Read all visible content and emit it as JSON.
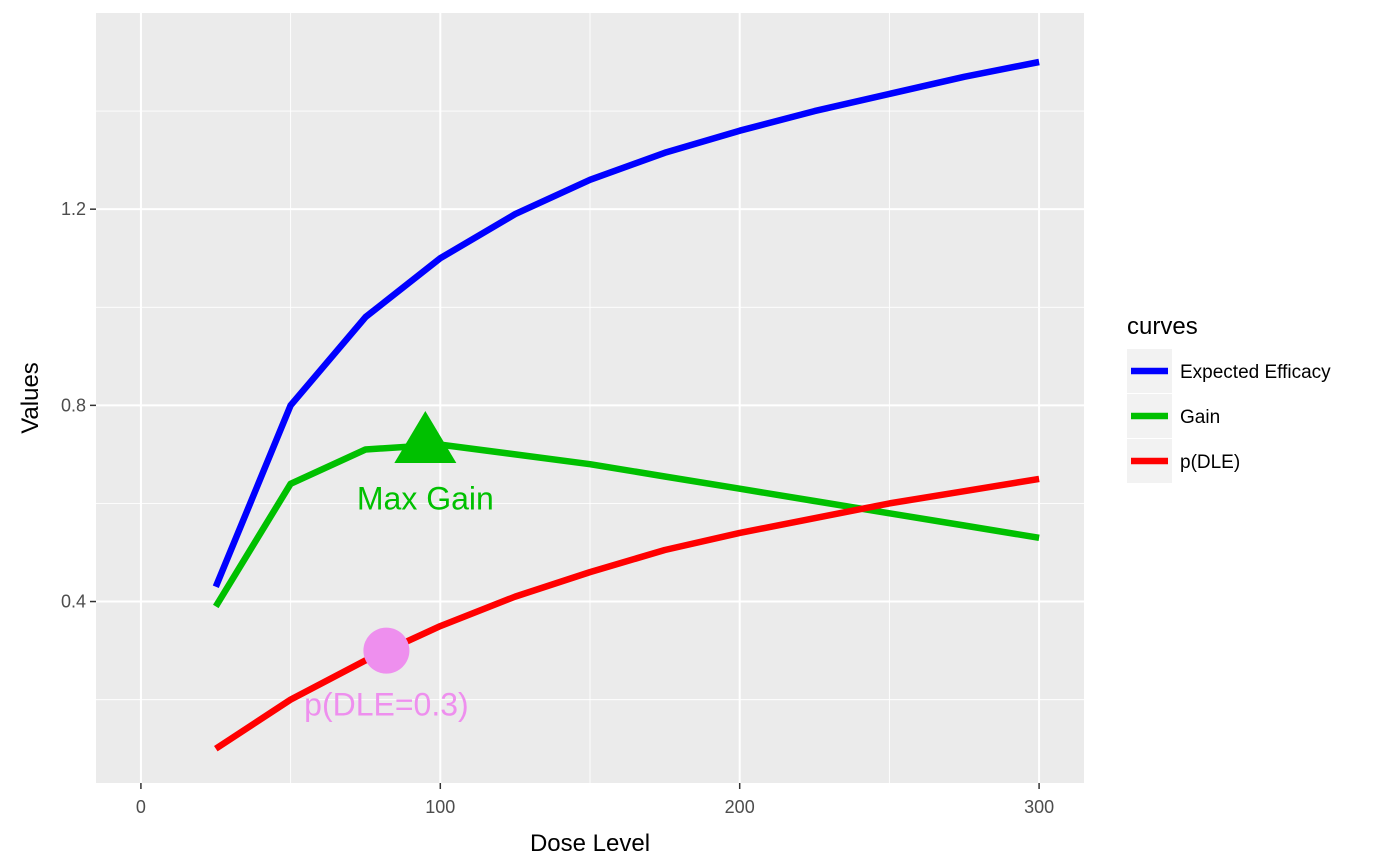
{
  "chart_data": {
    "type": "line",
    "xlabel": "Dose Level",
    "ylabel": "Values",
    "xlim": [
      -15,
      315
    ],
    "ylim": [
      0.03,
      1.6
    ],
    "x_ticks": [
      0,
      100,
      200,
      300
    ],
    "x_tick_labels": [
      "0",
      "100",
      "200",
      "300"
    ],
    "y_ticks": [
      0.4,
      0.8,
      1.2
    ],
    "y_tick_labels": [
      "0.4",
      "0.8",
      "1.2"
    ],
    "grid": true,
    "legend": {
      "title": "curves",
      "position": "right",
      "entries": [
        "Expected Efficacy",
        "Gain",
        "p(DLE)"
      ]
    },
    "x": [
      25,
      50,
      75,
      100,
      125,
      150,
      175,
      200,
      225,
      250,
      275,
      300
    ],
    "series": [
      {
        "name": "Expected Efficacy",
        "color": "#0000ff",
        "values": [
          0.43,
          0.8,
          0.98,
          1.1,
          1.19,
          1.26,
          1.315,
          1.36,
          1.4,
          1.435,
          1.47,
          1.5
        ]
      },
      {
        "name": "Gain",
        "color": "#00c000",
        "values": [
          0.39,
          0.64,
          0.71,
          0.72,
          0.7,
          0.68,
          0.655,
          0.63,
          0.605,
          0.58,
          0.555,
          0.53
        ]
      },
      {
        "name": "p(DLE)",
        "color": "#ff0000",
        "values": [
          0.1,
          0.2,
          0.28,
          0.35,
          0.41,
          0.46,
          0.505,
          0.54,
          0.57,
          0.6,
          0.625,
          0.65
        ]
      }
    ],
    "annotations": [
      {
        "label": "Max Gain",
        "x": 95,
        "y": 0.725,
        "label_x": 95,
        "label_y": 0.61,
        "marker": "triangle",
        "color": "#00c000"
      },
      {
        "label": "p(DLE=0.3)",
        "x": 82,
        "y": 0.3,
        "label_x": 82,
        "label_y": 0.19,
        "marker": "circle",
        "color": "#ee8fee"
      }
    ]
  }
}
